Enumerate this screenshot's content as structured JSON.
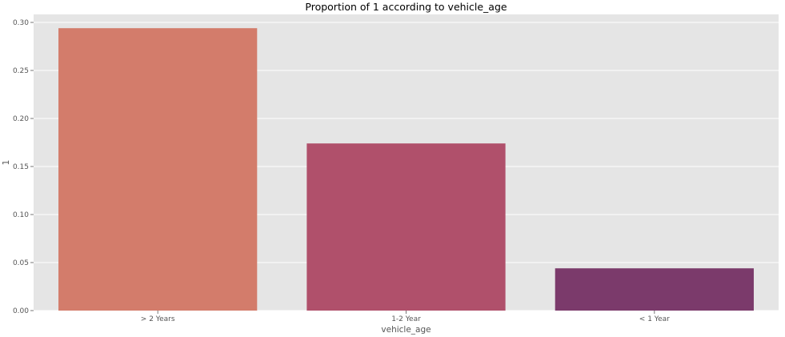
{
  "chart_data": {
    "type": "bar",
    "title": "Proportion of 1 according to vehicle_age",
    "xlabel": "vehicle_age",
    "ylabel": "1",
    "categories": [
      "> 2 Years",
      "1-2 Year",
      "< 1 Year"
    ],
    "values": [
      0.294,
      0.174,
      0.044
    ],
    "ylim": [
      0,
      0.3
    ],
    "yticks": [
      "0.00",
      "0.05",
      "0.10",
      "0.15",
      "0.20",
      "0.25",
      "0.30"
    ],
    "grid": true,
    "colors": {
      "background": "#e5e5e5",
      "grid": "#ffffff",
      "bars": [
        "#d37c6b",
        "#b0506b",
        "#7b3a6b"
      ],
      "text": "#555555",
      "title": "#000000"
    }
  }
}
